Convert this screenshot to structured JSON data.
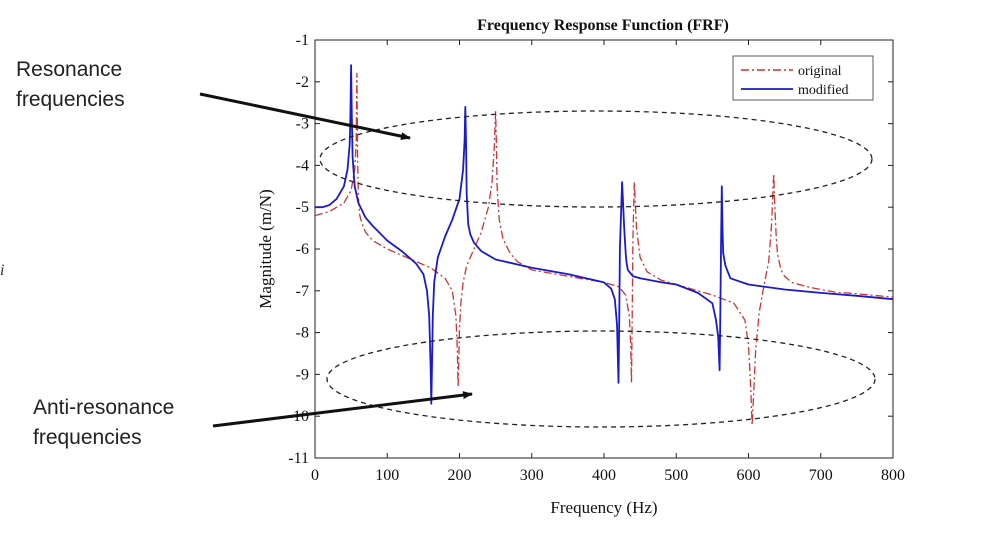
{
  "chart_data": {
    "type": "line",
    "title": "Frequency Response Function (FRF)",
    "xlabel": "Frequency (Hz)",
    "ylabel": "Magnitude (m/N)",
    "xlim": [
      0,
      800
    ],
    "ylim": [
      -11,
      -1
    ],
    "xticks": [
      0,
      100,
      200,
      300,
      400,
      500,
      600,
      700,
      800
    ],
    "yticks": [
      -1,
      -2,
      -3,
      -4,
      -5,
      -6,
      -7,
      -8,
      -9,
      -10,
      -11
    ],
    "grid": false,
    "legend_position": "top-right",
    "series": [
      {
        "name": "original",
        "color": "#cc3333",
        "style": "dash-dot",
        "x": [
          0,
          20,
          40,
          50,
          55,
          57,
          58,
          59,
          60,
          62,
          65,
          70,
          80,
          100,
          120,
          140,
          160,
          180,
          190,
          195,
          197,
          198,
          199,
          200,
          202,
          205,
          210,
          220,
          230,
          240,
          245,
          248,
          250,
          251,
          252,
          255,
          260,
          270,
          280,
          300,
          350,
          400,
          420,
          430,
          435,
          437,
          438,
          439,
          440,
          442,
          445,
          450,
          460,
          480,
          500,
          520,
          550,
          580,
          595,
          600,
          603,
          605,
          607,
          610,
          615,
          620,
          628,
          632,
          634,
          635,
          636,
          638,
          640,
          645,
          650,
          660,
          680,
          700,
          720,
          750,
          780,
          800
        ],
        "y": [
          -5.2,
          -5.1,
          -4.9,
          -4.6,
          -4.1,
          -3.5,
          -1.8,
          -3.8,
          -4.8,
          -5.2,
          -5.4,
          -5.6,
          -5.8,
          -6.0,
          -6.15,
          -6.3,
          -6.45,
          -6.7,
          -7.0,
          -7.6,
          -8.4,
          -9.3,
          -8.6,
          -7.9,
          -7.3,
          -6.8,
          -6.4,
          -6.0,
          -5.6,
          -5.0,
          -4.4,
          -3.6,
          -2.7,
          -3.4,
          -4.5,
          -5.3,
          -5.75,
          -6.1,
          -6.3,
          -6.5,
          -6.65,
          -6.8,
          -6.9,
          -7.1,
          -7.6,
          -8.3,
          -9.2,
          -7.6,
          -5.8,
          -4.4,
          -5.5,
          -6.2,
          -6.55,
          -6.75,
          -6.85,
          -6.95,
          -7.1,
          -7.3,
          -7.7,
          -8.3,
          -9.3,
          -10.2,
          -9.5,
          -8.4,
          -7.5,
          -7.0,
          -6.3,
          -5.4,
          -4.5,
          -4.2,
          -4.8,
          -5.6,
          -6.1,
          -6.5,
          -6.65,
          -6.8,
          -6.9,
          -6.97,
          -7.03,
          -7.07,
          -7.12,
          -7.15
        ]
      },
      {
        "name": "modified",
        "color": "#1a1acc",
        "style": "solid",
        "x": [
          0,
          10,
          20,
          30,
          40,
          45,
          48,
          49,
          50,
          51,
          52,
          55,
          60,
          70,
          80,
          100,
          120,
          140,
          150,
          155,
          158,
          160,
          161,
          162,
          163,
          165,
          170,
          180,
          190,
          200,
          205,
          207,
          208,
          209,
          210,
          212,
          215,
          220,
          230,
          250,
          300,
          350,
          400,
          410,
          415,
          418,
          420,
          421,
          422,
          425,
          428,
          430,
          431,
          433,
          440,
          450,
          480,
          500,
          530,
          550,
          555,
          558,
          560,
          561,
          562,
          563,
          564,
          565,
          568,
          575,
          600,
          650,
          700,
          750,
          800
        ],
        "y": [
          -5.0,
          -5.0,
          -4.95,
          -4.8,
          -4.5,
          -4.1,
          -3.5,
          -2.8,
          -1.6,
          -2.8,
          -3.8,
          -4.5,
          -4.9,
          -5.25,
          -5.45,
          -5.8,
          -6.05,
          -6.35,
          -6.6,
          -7.0,
          -7.6,
          -8.8,
          -9.7,
          -8.8,
          -7.6,
          -6.8,
          -6.2,
          -5.7,
          -5.3,
          -4.8,
          -4.1,
          -3.4,
          -2.6,
          -3.4,
          -4.7,
          -5.4,
          -5.65,
          -5.85,
          -6.05,
          -6.25,
          -6.45,
          -6.6,
          -6.8,
          -6.95,
          -7.2,
          -7.8,
          -9.2,
          -7.8,
          -6.0,
          -4.4,
          -5.5,
          -6.1,
          -6.3,
          -6.5,
          -6.65,
          -6.7,
          -6.8,
          -6.85,
          -7.05,
          -7.3,
          -7.7,
          -8.1,
          -8.9,
          -7.6,
          -6.0,
          -4.5,
          -5.5,
          -6.1,
          -6.4,
          -6.7,
          -6.85,
          -6.97,
          -7.05,
          -7.12,
          -7.2
        ]
      }
    ]
  },
  "annotations": {
    "resonance_label_line1": "Resonance",
    "resonance_label_line2": "frequencies",
    "antiresonance_label_line1": "Anti-resonance",
    "antiresonance_label_line2": "frequencies",
    "stray_glyph": "i"
  }
}
